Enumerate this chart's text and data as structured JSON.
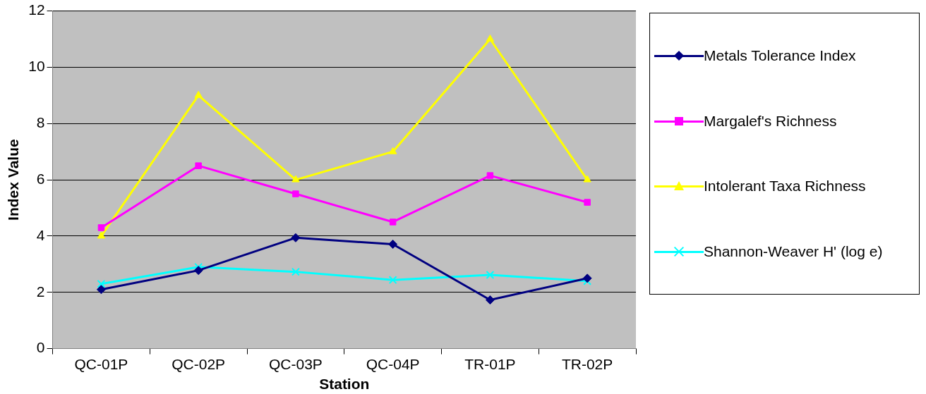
{
  "chart_data": {
    "type": "line",
    "xlabel": "Station",
    "ylabel": "Index Value",
    "categories": [
      "QC-01P",
      "QC-02P",
      "QC-03P",
      "QC-04P",
      "TR-01P",
      "TR-02P"
    ],
    "series": [
      {
        "name": "Metals Tolerance Index",
        "color": "#000080",
        "marker": "diamond",
        "values": [
          2.1,
          2.78,
          3.94,
          3.71,
          1.73,
          2.5
        ]
      },
      {
        "name": "Margalef's Richness",
        "color": "#ff00ff",
        "marker": "square",
        "values": [
          4.3,
          6.5,
          5.5,
          4.5,
          6.15,
          5.2
        ]
      },
      {
        "name": "Intolerant Taxa Richness",
        "color": "#ffff00",
        "marker": "triangle",
        "values": [
          4,
          9,
          6,
          7,
          11,
          6
        ]
      },
      {
        "name": "Shannon-Weaver H' (log e)",
        "color": "#00ffff",
        "marker": "cross",
        "values": [
          2.3,
          2.9,
          2.73,
          2.44,
          2.62,
          2.4
        ]
      }
    ],
    "ylim": [
      0,
      12
    ],
    "yticks": [
      0,
      2,
      4,
      6,
      8,
      10,
      12
    ],
    "grid": "y",
    "legend": "right",
    "line_style": "solid"
  }
}
